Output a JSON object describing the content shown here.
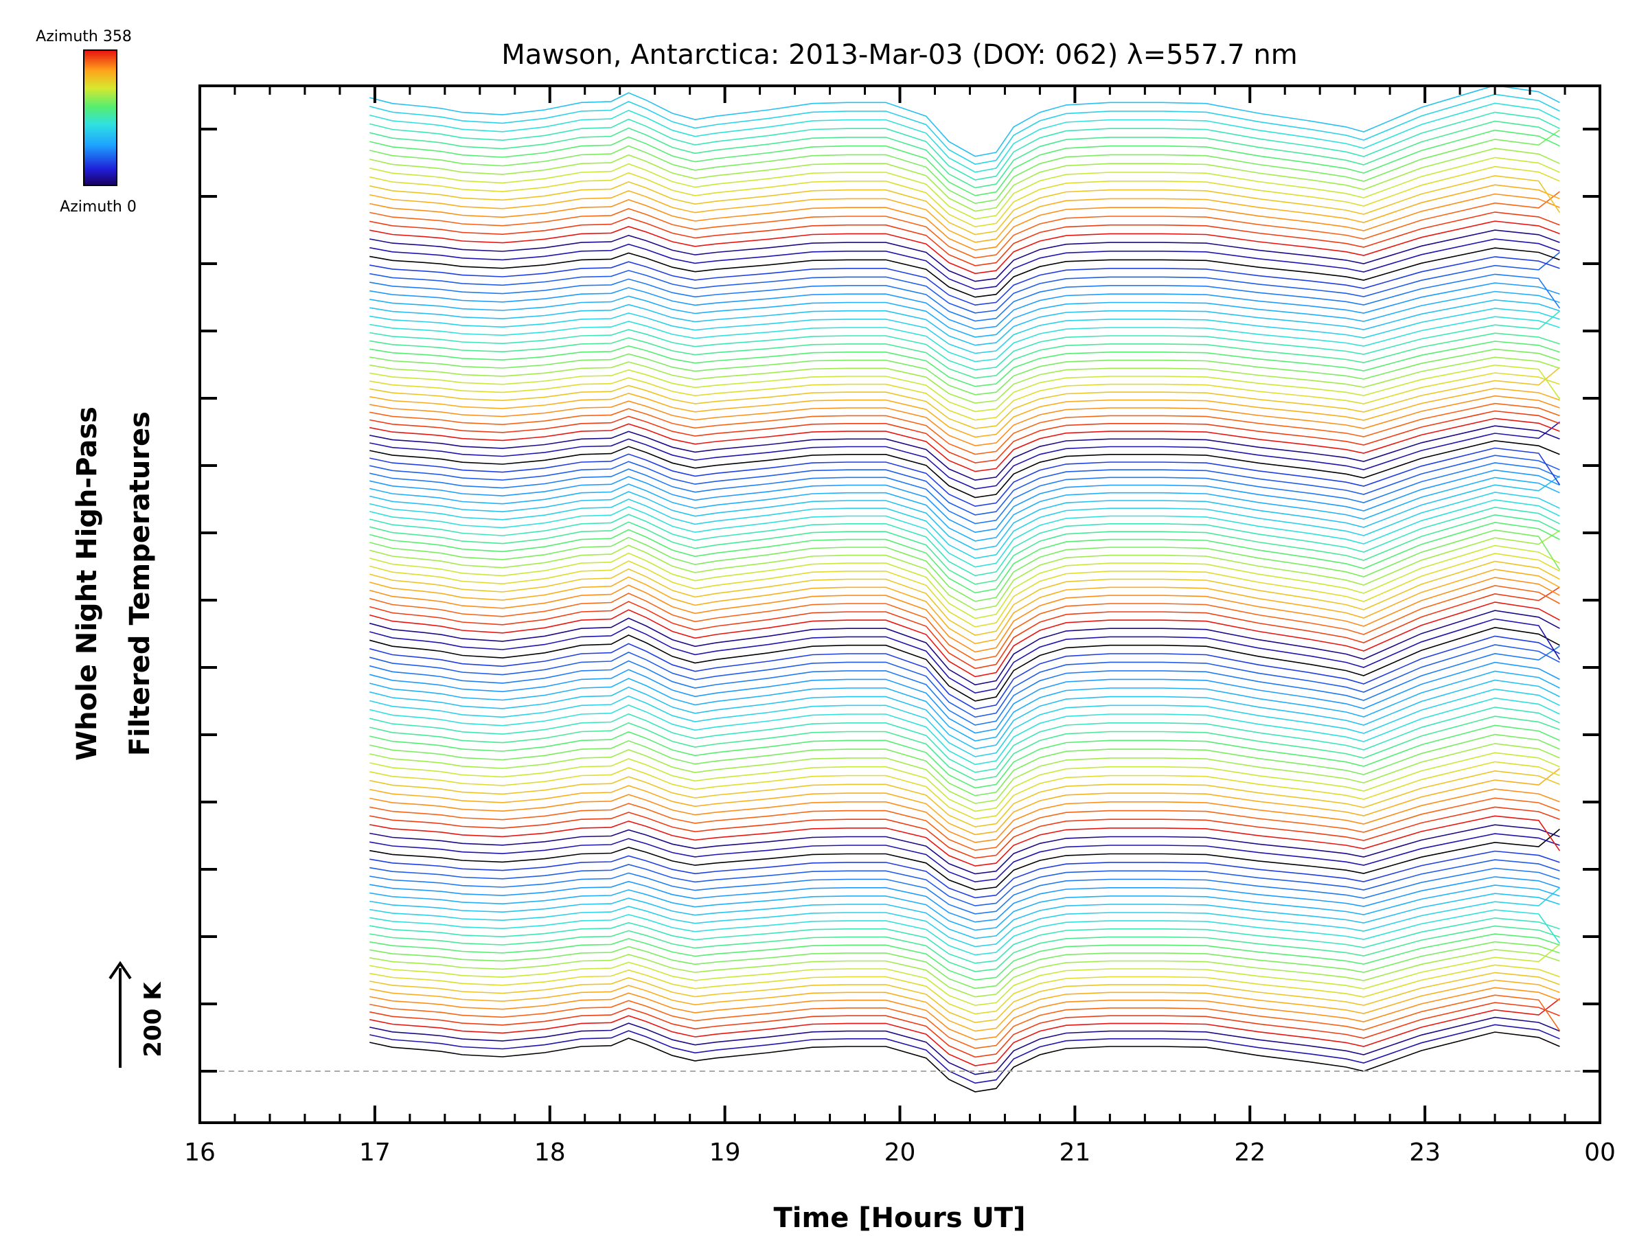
{
  "chart_data": {
    "type": "line",
    "title": "Mawson, Antarctica: 2013-Mar-03 (DOY: 062) λ=557.7 nm",
    "xlabel": "Time [Hours UT]",
    "ylabel_line1": "Whole Night High-Pass",
    "ylabel_line2": "Filtered Temperatures",
    "x_ticks": [
      "16",
      "17",
      "18",
      "19",
      "20",
      "21",
      "22",
      "23",
      "00"
    ],
    "x_tick_values": [
      16,
      17,
      18,
      19,
      20,
      21,
      22,
      23,
      24
    ],
    "xlim": [
      16,
      24
    ],
    "colorbar": {
      "top_label": "Azimuth 358",
      "bottom_label": "Azimuth 0",
      "colormap": "rainbow"
    },
    "scale_bar": {
      "label": "200 K"
    },
    "legend_placement": "top-left colorbar",
    "n_traces": 115,
    "trace_offset_K": 20,
    "trace_azimuth_period": 24,
    "x": [
      16.97,
      17.1,
      17.28,
      17.38,
      17.5,
      17.73,
      17.97,
      18.18,
      18.35,
      18.45,
      18.55,
      18.7,
      18.83,
      18.95,
      19.25,
      19.5,
      19.7,
      19.92,
      20.15,
      20.28,
      20.43,
      20.55,
      20.65,
      20.8,
      20.95,
      21.2,
      21.5,
      21.75,
      22.05,
      22.35,
      22.55,
      22.65,
      22.98,
      23.4,
      23.65,
      23.77
    ],
    "baseline_shape_K": [
      70,
      58,
      52,
      48,
      40,
      35,
      45,
      60,
      62,
      80,
      65,
      38,
      25,
      32,
      45,
      58,
      60,
      60,
      32,
      -20,
      -50,
      -42,
      10,
      40,
      55,
      60,
      60,
      58,
      38,
      22,
      10,
      0,
      50,
      95,
      82,
      60
    ],
    "end_anomalies": [
      {
        "trace_every": 7,
        "delta_K": 75,
        "points": "last"
      }
    ],
    "reference_line": "dashed gray at baseline of trace 0"
  }
}
